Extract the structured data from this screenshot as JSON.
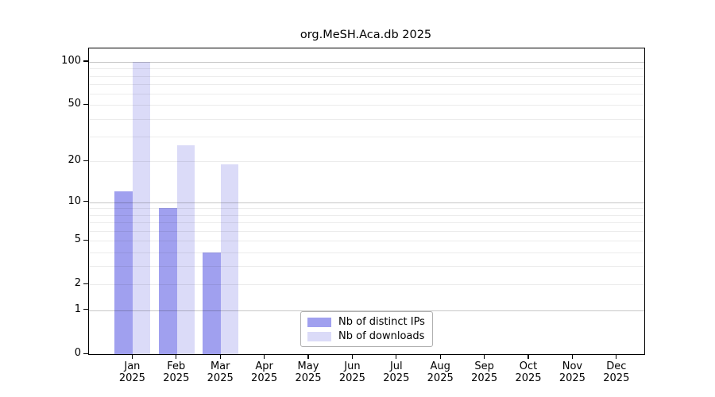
{
  "chart_data": {
    "type": "bar",
    "title": "org.MeSH.Aca.db 2025",
    "categories": [
      "Jan",
      "Feb",
      "Mar",
      "Apr",
      "May",
      "Jun",
      "Jul",
      "Aug",
      "Sep",
      "Oct",
      "Nov",
      "Dec"
    ],
    "category_year": "2025",
    "series": [
      {
        "key": "distinct-ips",
        "name": "Nb of distinct IPs",
        "color": "#a0a0ef",
        "values": [
          12,
          9,
          4,
          0,
          0,
          0,
          0,
          0,
          0,
          0,
          0,
          0
        ]
      },
      {
        "key": "downloads",
        "name": "Nb of downloads",
        "color": "#dbdbf8",
        "values": [
          100,
          26,
          19,
          0,
          0,
          0,
          0,
          0,
          0,
          0,
          0,
          0
        ]
      }
    ],
    "y_axis": {
      "scale": "log10(value+1)",
      "ticks": [
        0,
        1,
        2,
        5,
        10,
        20,
        50,
        100
      ],
      "max": 124,
      "gridlines": [
        1,
        2,
        3,
        4,
        5,
        6,
        7,
        8,
        9,
        10,
        20,
        30,
        40,
        50,
        60,
        70,
        80,
        90,
        100
      ],
      "major_gridlines": [
        1,
        10,
        100
      ]
    },
    "x_axis": {
      "label_lines": 2
    },
    "legend": {
      "position": "lower center"
    },
    "colors": {
      "grid_minor": "#ececec",
      "grid_major": "#c6c6c6",
      "axis": "#000000",
      "background": "#ffffff"
    }
  }
}
